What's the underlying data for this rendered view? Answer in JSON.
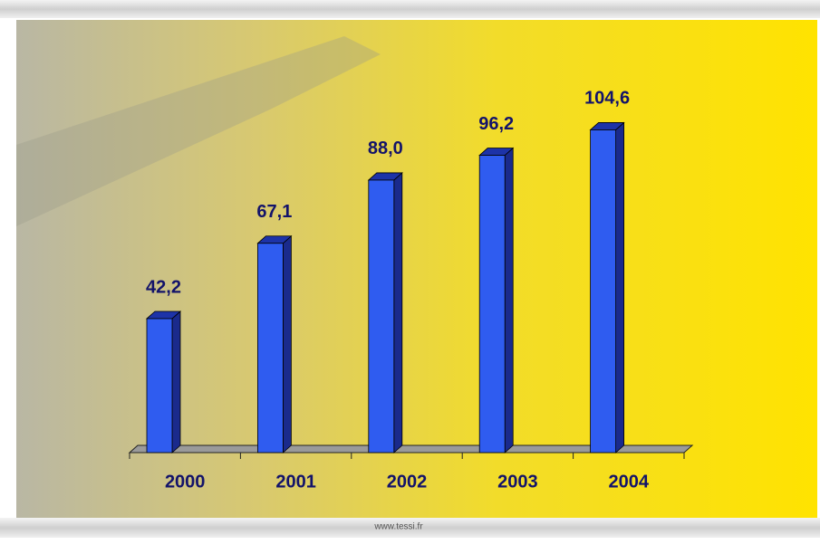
{
  "chart_data": {
    "type": "bar3d",
    "categories": [
      "2000",
      "2001",
      "2002",
      "2003",
      "2004"
    ],
    "values": [
      42.2,
      67.1,
      88.0,
      96.2,
      104.6
    ],
    "value_labels": [
      "42,2",
      "67,1",
      "88,0",
      "96,2",
      "104,6"
    ],
    "color": "#2f5cf0",
    "ylim": [
      0,
      120
    ]
  },
  "footer": "www.tessi.fr"
}
